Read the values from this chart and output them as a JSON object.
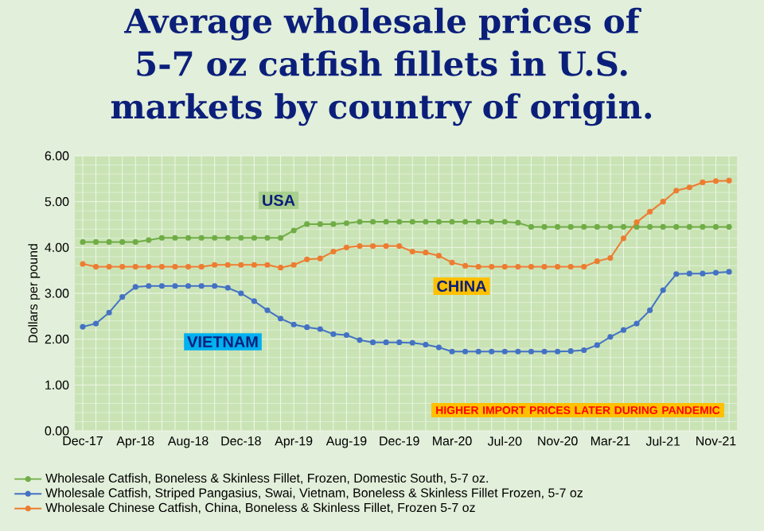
{
  "chart_data": {
    "type": "line",
    "title": "Average wholesale prices of 5-7 oz catfish fillets in U.S. markets by country of origin.",
    "ylabel": "Dollars per pound",
    "categories": [
      "Dec-17",
      null,
      null,
      null,
      "Apr-18",
      null,
      null,
      null,
      "Aug-18",
      null,
      null,
      null,
      "Dec-18",
      null,
      null,
      null,
      "Apr-19",
      null,
      null,
      null,
      "Aug-19",
      null,
      null,
      null,
      "Dec-19",
      null,
      null,
      null,
      "Mar-20",
      null,
      null,
      null,
      "Jul-20",
      null,
      null,
      null,
      "Nov-20",
      null,
      null,
      null,
      "Mar-21",
      null,
      null,
      null,
      "Jul-21",
      null,
      null,
      null,
      "Nov-21",
      null
    ],
    "series": [
      {
        "name": "Wholesale Catfish, Boneless & Skinless Fillet, Frozen, Domestic South, 5-7 oz.",
        "color": "#70ad47",
        "values": [
          4.12,
          4.12,
          4.12,
          4.12,
          4.12,
          4.16,
          4.21,
          4.21,
          4.21,
          4.21,
          4.21,
          4.21,
          4.21,
          4.21,
          4.21,
          4.21,
          4.37,
          4.51,
          4.51,
          4.51,
          4.53,
          4.56,
          4.56,
          4.56,
          4.56,
          4.56,
          4.56,
          4.56,
          4.56,
          4.56,
          4.56,
          4.56,
          4.56,
          4.54,
          4.45,
          4.45,
          4.45,
          4.45,
          4.45,
          4.45,
          4.45,
          4.45,
          4.45,
          4.45,
          4.45,
          4.45,
          4.45,
          4.45,
          4.45,
          4.45
        ]
      },
      {
        "name": "Wholesale Catfish, Striped Pangasius, Swai, Vietnam, Boneless & Skinless Fillet Frozen, 5-7 oz",
        "color": "#4472c4",
        "values": [
          2.27,
          2.34,
          2.58,
          2.92,
          3.14,
          3.16,
          3.16,
          3.16,
          3.16,
          3.16,
          3.16,
          3.12,
          3.0,
          2.83,
          2.63,
          2.45,
          2.32,
          2.26,
          2.22,
          2.11,
          2.09,
          1.98,
          1.93,
          1.93,
          1.93,
          1.92,
          1.88,
          1.82,
          1.73,
          1.73,
          1.73,
          1.73,
          1.73,
          1.73,
          1.73,
          1.73,
          1.73,
          1.74,
          1.76,
          1.87,
          2.05,
          2.2,
          2.34,
          2.63,
          3.07,
          3.42,
          3.43,
          3.43,
          3.45,
          3.47
        ]
      },
      {
        "name": "Wholesale Chinese Catfish, China, Boneless & Skinless Fillet, Frozen 5-7 oz",
        "color": "#ed7d31",
        "values": [
          3.64,
          3.58,
          3.58,
          3.58,
          3.58,
          3.58,
          3.58,
          3.58,
          3.58,
          3.58,
          3.62,
          3.62,
          3.62,
          3.62,
          3.62,
          3.56,
          3.62,
          3.74,
          3.76,
          3.91,
          4.0,
          4.03,
          4.03,
          4.03,
          4.03,
          3.91,
          3.89,
          3.82,
          3.67,
          3.6,
          3.58,
          3.58,
          3.58,
          3.58,
          3.58,
          3.58,
          3.58,
          3.58,
          3.58,
          3.7,
          3.77,
          4.2,
          4.55,
          4.78,
          5.0,
          5.24,
          5.31,
          5.42,
          5.45,
          5.46
        ]
      }
    ],
    "ylim": [
      0,
      6
    ],
    "yticks": [
      {
        "value": 0,
        "label": "0.00"
      },
      {
        "value": 1,
        "label": "1.00"
      },
      {
        "value": 2,
        "label": "2.00"
      },
      {
        "value": 3,
        "label": "3.00"
      },
      {
        "value": 4,
        "label": "4.00"
      },
      {
        "value": 5,
        "label": "5.00"
      },
      {
        "value": 6,
        "label": "6.00"
      }
    ],
    "grid": true,
    "legend": "bottom",
    "marker": "circle",
    "line_style": "solid",
    "annotations": [
      "USA",
      "CHINA",
      "VIETNAM",
      "HIGHER IMPORT PRICES LATER DURING PANDEMIC"
    ]
  }
}
